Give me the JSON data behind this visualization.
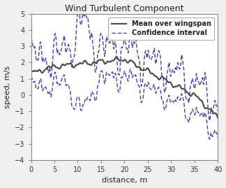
{
  "title": "Wind Turbulent Component",
  "xlabel": "distance, m",
  "ylabel": "speed, m/s",
  "xlim": [
    0,
    40
  ],
  "ylim": [
    -4,
    5
  ],
  "xticks": [
    0,
    5,
    10,
    15,
    20,
    25,
    30,
    35,
    40
  ],
  "yticks": [
    -4,
    -3,
    -2,
    -1,
    0,
    1,
    2,
    3,
    4,
    5
  ],
  "mean_color": "#4d4d4d",
  "ci_color": "#4040aa",
  "mean_label": "Mean over wingspan",
  "ci_label": "Confidence interval",
  "mean_linewidth": 1.6,
  "ci_linewidth": 1.0,
  "figsize": [
    3.24,
    2.69
  ],
  "dpi": 100,
  "bg_color": "#f0f0f0",
  "axes_bg": "#ffffff",
  "title_fontsize": 9,
  "label_fontsize": 8,
  "tick_fontsize": 7,
  "legend_fontsize": 7
}
